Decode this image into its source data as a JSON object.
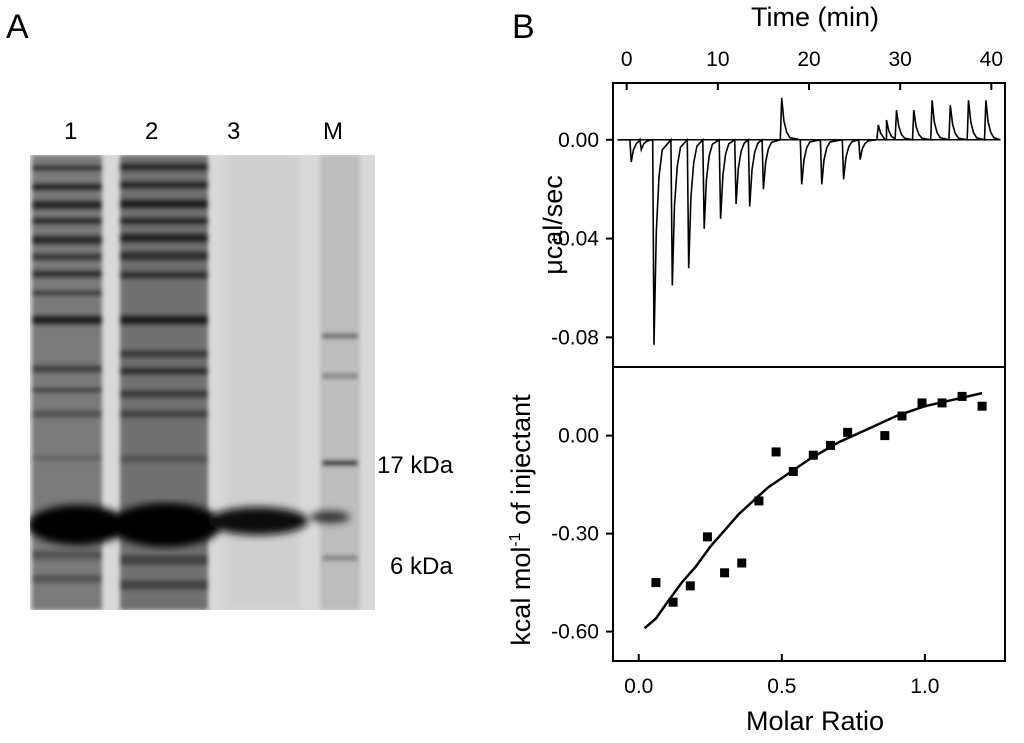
{
  "panel_a": {
    "label": "A",
    "lanes": [
      "1",
      "2",
      "3",
      "M"
    ],
    "markers": [
      "17 kDa",
      "6 kDa"
    ]
  },
  "panel_b": {
    "label": "B"
  },
  "chart_data": [
    {
      "type": "line",
      "xlabel": "Time (min)",
      "ylabel": "μcal/sec",
      "xlim": [
        -1.5,
        41.5
      ],
      "ylim": [
        -0.092,
        0.023
      ],
      "x_ticks": [
        0,
        10,
        20,
        30,
        40
      ],
      "x_tick_labels": [
        "0",
        "10",
        "20",
        "30",
        "40"
      ],
      "y_ticks": [
        0.0,
        -0.04,
        -0.08
      ],
      "y_tick_labels": [
        "0.00",
        "-0.04",
        "-0.08"
      ],
      "baseline": 0.0,
      "injections": [
        {
          "t": 0.5,
          "peak": -0.009
        },
        {
          "t": 1.6,
          "peak": -0.004
        },
        {
          "t": 3.0,
          "peak": -0.083
        },
        {
          "t": 5.0,
          "peak": -0.059
        },
        {
          "t": 6.8,
          "peak": -0.052
        },
        {
          "t": 8.5,
          "peak": -0.036
        },
        {
          "t": 10.3,
          "peak": -0.032
        },
        {
          "t": 12.0,
          "peak": -0.026
        },
        {
          "t": 13.5,
          "peak": -0.027
        },
        {
          "t": 15.0,
          "peak": -0.02
        },
        {
          "t": 17.0,
          "peak": 0.017
        },
        {
          "t": 19.2,
          "peak": -0.018
        },
        {
          "t": 21.4,
          "peak": -0.018
        },
        {
          "t": 23.8,
          "peak": -0.016
        },
        {
          "t": 25.6,
          "peak": -0.008
        },
        {
          "t": 27.6,
          "peak": 0.006
        },
        {
          "t": 28.5,
          "peak": 0.008
        },
        {
          "t": 29.6,
          "peak": 0.012
        },
        {
          "t": 31.5,
          "peak": 0.012
        },
        {
          "t": 33.5,
          "peak": 0.016
        },
        {
          "t": 35.5,
          "peak": 0.014
        },
        {
          "t": 37.5,
          "peak": 0.016
        },
        {
          "t": 39.4,
          "peak": 0.016
        }
      ],
      "grid": false
    },
    {
      "type": "scatter",
      "xlabel": "Molar Ratio",
      "ylabel": "kcal mol",
      "ylabel_sup": "-1",
      "ylabel_rest": " of injectant",
      "xlim": [
        -0.09,
        1.28
      ],
      "ylim": [
        -0.69,
        0.21
      ],
      "x_ticks": [
        0.0,
        0.5,
        1.0
      ],
      "x_tick_labels": [
        "0.0",
        "0.5",
        "1.0"
      ],
      "y_ticks": [
        0.0,
        -0.3,
        -0.6
      ],
      "y_tick_labels": [
        "0.00",
        "-0.30",
        "-0.60"
      ],
      "points": [
        {
          "x": 0.06,
          "y": -0.45
        },
        {
          "x": 0.12,
          "y": -0.51
        },
        {
          "x": 0.18,
          "y": -0.46
        },
        {
          "x": 0.24,
          "y": -0.31
        },
        {
          "x": 0.3,
          "y": -0.42
        },
        {
          "x": 0.36,
          "y": -0.39
        },
        {
          "x": 0.42,
          "y": -0.2
        },
        {
          "x": 0.48,
          "y": -0.05
        },
        {
          "x": 0.54,
          "y": -0.11
        },
        {
          "x": 0.61,
          "y": -0.06
        },
        {
          "x": 0.67,
          "y": -0.03
        },
        {
          "x": 0.73,
          "y": 0.01
        },
        {
          "x": 0.86,
          "y": 0.0
        },
        {
          "x": 0.92,
          "y": 0.06
        },
        {
          "x": 0.99,
          "y": 0.1
        },
        {
          "x": 1.06,
          "y": 0.1
        },
        {
          "x": 1.13,
          "y": 0.12
        },
        {
          "x": 1.2,
          "y": 0.09
        }
      ],
      "fit": {
        "x": [
          0.02,
          0.06,
          0.1,
          0.15,
          0.2,
          0.25,
          0.3,
          0.35,
          0.4,
          0.45,
          0.5,
          0.6,
          0.7,
          0.8,
          0.9,
          1.0,
          1.1,
          1.2
        ],
        "y": [
          -0.59,
          -0.56,
          -0.51,
          -0.45,
          -0.4,
          -0.34,
          -0.29,
          -0.24,
          -0.2,
          -0.16,
          -0.13,
          -0.07,
          -0.02,
          0.02,
          0.06,
          0.09,
          0.11,
          0.13
        ]
      },
      "grid": false
    }
  ]
}
